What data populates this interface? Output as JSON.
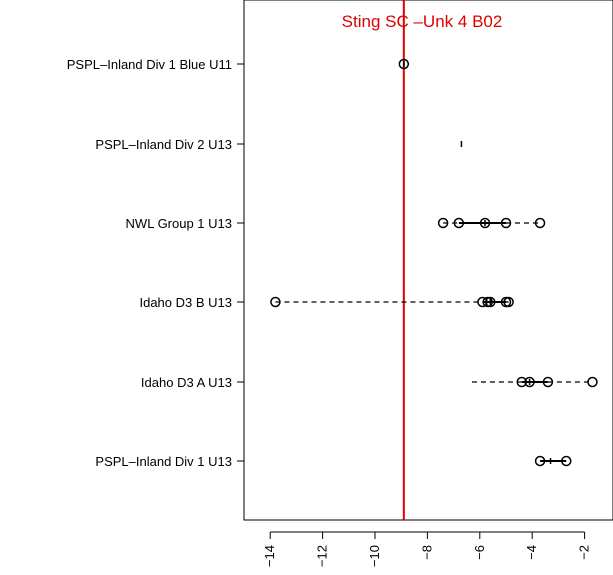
{
  "chart_data": {
    "type": "boxplot",
    "orientation": "horizontal",
    "title": "Sting SC –Unk 4 B02",
    "xlabel": "",
    "ylabel": "",
    "xlim": [
      -15,
      0
    ],
    "x_ticks": [
      -14,
      -12,
      -10,
      -8,
      -6,
      -4,
      -2
    ],
    "x_tick_labels": [
      "−14",
      "−12",
      "−10",
      "−8",
      "−6",
      "−4",
      "−2"
    ],
    "reference_line": {
      "x": -8.9,
      "color": "#e00000"
    },
    "categories": [
      "PSPL–Inland Div 1 Blue U11",
      "PSPL–Inland Div 2 U13",
      "NWL Group 1 U13",
      "Idaho D3 B U13",
      "Idaho D3 A U13",
      "PSPL–Inland Div 1 U13"
    ],
    "series": [
      {
        "min": -8.9,
        "q1": -8.9,
        "median": -8.9,
        "q3": -8.9,
        "max": -8.9,
        "outliers": [
          -8.9
        ]
      },
      {
        "min": -6.7,
        "q1": -6.7,
        "median": -6.7,
        "q3": -6.7,
        "max": -6.7,
        "outliers": []
      },
      {
        "min": -7.4,
        "q1": -6.8,
        "median": -5.8,
        "q3": -5.0,
        "max": -3.7,
        "outliers": [
          -7.4,
          -6.8,
          -5.8,
          -5.0,
          -3.7
        ]
      },
      {
        "min": -13.8,
        "q1": -5.9,
        "median": -5.6,
        "q3": -5.0,
        "max": -4.9,
        "outliers": [
          -13.8,
          -5.9,
          -5.7,
          -5.6,
          -5.0,
          -4.9
        ]
      },
      {
        "min": -6.3,
        "q1": -4.4,
        "median": -4.1,
        "q3": -3.4,
        "max": -1.7,
        "outliers": [
          -4.4,
          -4.1,
          -3.4,
          -1.7
        ]
      },
      {
        "min": -3.7,
        "q1": -3.7,
        "median": -3.3,
        "q3": -2.7,
        "max": -2.7,
        "outliers": [
          -3.7,
          -2.7
        ]
      }
    ],
    "colors": {
      "reference": "#e00000",
      "marks": "#000000"
    },
    "grid": false,
    "legend": "none"
  }
}
